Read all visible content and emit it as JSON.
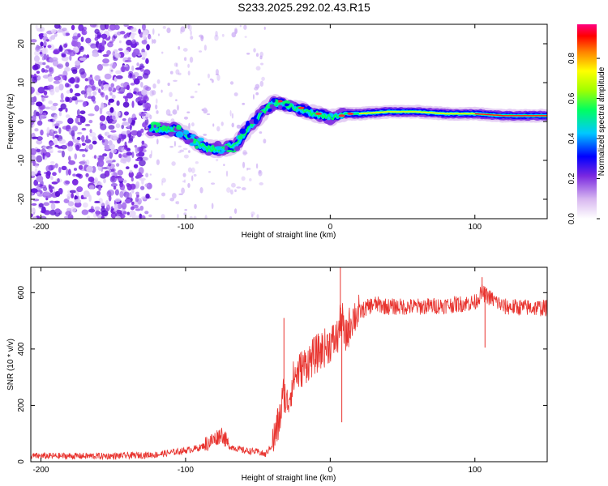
{
  "title": "S233.2025.292.02.43.R15",
  "chart_data": [
    {
      "type": "heatmap",
      "xlabel": "Height of straight line (km)",
      "ylabel": "Frequency (Hz)",
      "xlim": [
        -207,
        150
      ],
      "ylim": [
        -25,
        25
      ],
      "xticks": [
        -200,
        -100,
        0,
        100
      ],
      "yticks": [
        -20,
        -10,
        0,
        10,
        20
      ],
      "colorbar": {
        "label": "Normalized spectral amplitude",
        "range": [
          0.0,
          0.97
        ],
        "ticks": [
          0.0,
          0.2,
          0.4,
          0.6,
          0.8
        ]
      },
      "ridge": {
        "x": [
          -125,
          -115,
          -105,
          -95,
          -85,
          -75,
          -65,
          -55,
          -45,
          -38,
          -30,
          -20,
          -10,
          0,
          10,
          20,
          40,
          60,
          80,
          100,
          120,
          150
        ],
        "freq": [
          -2,
          -2,
          -2,
          -5,
          -7,
          -7,
          -6,
          -1,
          3,
          5,
          4,
          3,
          2,
          1,
          2,
          2,
          2.5,
          2.5,
          2,
          2,
          1.5,
          1.5
        ]
      },
      "noise_region_x": [
        -207,
        -125
      ]
    },
    {
      "type": "line",
      "xlabel": "Height of straight line (km)",
      "ylabel": "SNR (10 * v/v)",
      "xlim": [
        -207,
        150
      ],
      "ylim": [
        0,
        690
      ],
      "xticks": [
        -200,
        -100,
        0,
        100
      ],
      "yticks": [
        0,
        200,
        400,
        600
      ],
      "color": "#e8332e",
      "series": [
        {
          "name": "SNR",
          "x": [
            -207,
            -150,
            -120,
            -100,
            -90,
            -80,
            -75,
            -70,
            -60,
            -50,
            -45,
            -40,
            -35,
            -32,
            -30,
            -25,
            -20,
            -10,
            0,
            5,
            8,
            10,
            15,
            20,
            30,
            40,
            60,
            80,
            100,
            105,
            120,
            150
          ],
          "values": [
            20,
            20,
            25,
            40,
            50,
            80,
            100,
            55,
            40,
            35,
            25,
            60,
            150,
            250,
            200,
            300,
            330,
            380,
            420,
            440,
            520,
            430,
            510,
            530,
            560,
            550,
            550,
            555,
            565,
            600,
            550,
            545
          ]
        }
      ],
      "spikes": [
        {
          "x": -32,
          "value": 510
        },
        {
          "x": 7,
          "value": 690
        },
        {
          "x": 8,
          "value": 140
        },
        {
          "x": 105,
          "value": 655
        },
        {
          "x": 107,
          "value": 405
        }
      ]
    }
  ]
}
